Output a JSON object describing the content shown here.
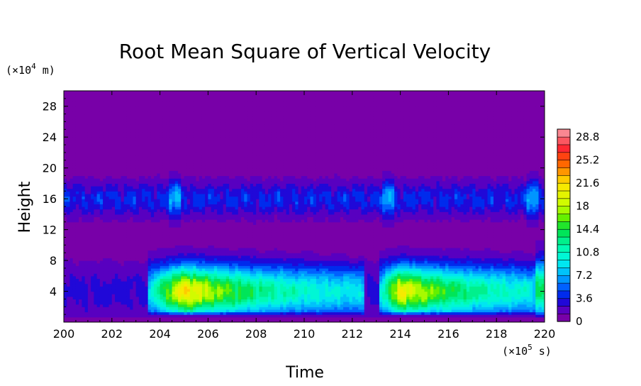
{
  "chart_data": {
    "type": "heatmap",
    "title": "Root Mean Square of Vertical Velocity",
    "xlabel": "Time",
    "ylabel": "Height",
    "x_unit_label": "(×10",
    "x_unit_exp": "5",
    "x_unit_suffix": " s)",
    "y_unit_label": "(×10",
    "y_unit_exp": "4",
    "y_unit_suffix": " m)",
    "xlim": [
      200,
      220
    ],
    "ylim": [
      0,
      30
    ],
    "x_ticks": [
      "200",
      "202",
      "204",
      "206",
      "208",
      "210",
      "212",
      "214",
      "216",
      "218",
      "220"
    ],
    "y_ticks": [
      "4",
      "8",
      "12",
      "16",
      "20",
      "24",
      "28"
    ],
    "x_tick_values": [
      200,
      202,
      204,
      206,
      208,
      210,
      212,
      214,
      216,
      218,
      220
    ],
    "y_tick_values": [
      4,
      8,
      12,
      16,
      20,
      24,
      28
    ],
    "colorbar": {
      "min": 0,
      "max": 30,
      "step": 1.2,
      "labels": [
        "0",
        "3.6",
        "7.2",
        "10.8",
        "14.4",
        "18",
        "21.6",
        "25.2",
        "28.8"
      ],
      "label_values": [
        0,
        3.6,
        7.2,
        10.8,
        14.4,
        18,
        21.6,
        25.2,
        28.8
      ]
    },
    "background_level": 0.6,
    "features": [
      {
        "name": "convective burst",
        "x_start": 203.5,
        "x_peak": 205,
        "x_end": 212.5,
        "peak_height": 4,
        "peak_value": 19
      },
      {
        "name": "convective burst",
        "x_start": 213.1,
        "x_peak": 214,
        "x_end": 220,
        "peak_height": 4,
        "peak_value": 18
      },
      {
        "name": "upper layer",
        "height_range": [
          13,
          19
        ],
        "value_range": [
          2.4,
          6
        ]
      }
    ]
  }
}
